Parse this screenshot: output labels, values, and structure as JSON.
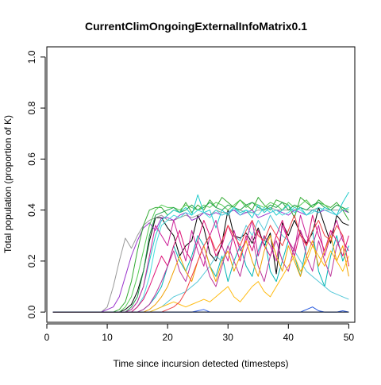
{
  "chart_data": {
    "type": "line",
    "title": "CurrentClimOngoingExternalInfoMatrix0.1",
    "xlabel": "Time since incursion detected (timesteps)",
    "ylabel": "Total population (proportion of K)",
    "xlim": [
      0,
      51
    ],
    "ylim": [
      -0.04,
      1.04
    ],
    "xticks": [
      0,
      10,
      20,
      30,
      40,
      50
    ],
    "yticks": [
      0.0,
      0.2,
      0.4,
      0.6,
      0.8,
      1.0
    ],
    "ytick_labels": [
      "0.0",
      "0.2",
      "0.4",
      "0.6",
      "0.8",
      "1.0"
    ],
    "grid": false,
    "legend": "none",
    "series": [
      {
        "color": "#000000",
        "values": [
          0,
          0,
          0,
          0,
          0,
          0,
          0,
          0,
          0,
          0,
          0,
          0,
          0.01,
          0.03,
          0.08,
          0.16,
          0.28,
          0.37,
          0.37,
          0.33,
          0.3,
          0.22,
          0.26,
          0.28,
          0.38,
          0.33,
          0.23,
          0.2,
          0.27,
          0.4,
          0.3,
          0.29,
          0.31,
          0.27,
          0.33,
          0.26,
          0.31,
          0.15,
          0.35,
          0.3,
          0.36,
          0.31,
          0.27,
          0.31,
          0.41,
          0.34,
          0.27,
          0.38,
          0.35,
          0.34
        ]
      },
      {
        "color": "#999999",
        "values": [
          0,
          0,
          0,
          0,
          0,
          0,
          0,
          0,
          0,
          0.02,
          0.1,
          0.2,
          0.29,
          0.25,
          0.3,
          0.34,
          0.36,
          0.37,
          0.38,
          0.36,
          0.36,
          0.37,
          0.38,
          0.37,
          0.38,
          0.39,
          0.38,
          0.4,
          0.39,
          0.39,
          0.4,
          0.4,
          0.39,
          0.39,
          0.4,
          0.4,
          0.41,
          0.4,
          0.4,
          0.4,
          0.4,
          0.41,
          0.4,
          0.4,
          0.41,
          0.4,
          0.4,
          0.4,
          0.4,
          0.41
        ]
      },
      {
        "color": "#9933CC",
        "values": [
          0,
          0,
          0,
          0,
          0,
          0,
          0,
          0,
          0,
          0.01,
          0.02,
          0.06,
          0.14,
          0.22,
          0.28,
          0.33,
          0.35,
          0.32,
          0.37,
          0.37,
          0.36,
          0.38,
          0.39,
          0.36,
          0.37,
          0.39,
          0.38,
          0.39,
          0.38,
          0.39,
          0.4,
          0.38,
          0.39,
          0.4,
          0.37,
          0.38,
          0.39,
          0.4,
          0.39,
          0.38,
          0.4,
          0.39,
          0.38,
          0.4,
          0.39,
          0.4,
          0.39,
          0.38,
          0.4,
          0.39
        ]
      },
      {
        "color": "#33AA33",
        "values": [
          0,
          0,
          0,
          0,
          0,
          0,
          0,
          0,
          0,
          0,
          0,
          0.01,
          0.04,
          0.12,
          0.24,
          0.34,
          0.4,
          0.41,
          0.41,
          0.38,
          0.4,
          0.39,
          0.43,
          0.39,
          0.42,
          0.4,
          0.44,
          0.41,
          0.45,
          0.43,
          0.41,
          0.44,
          0.42,
          0.4,
          0.45,
          0.42,
          0.4,
          0.44,
          0.43,
          0.42,
          0.37,
          0.45,
          0.43,
          0.41,
          0.44,
          0.42,
          0.41,
          0.43,
          0.4,
          0.36
        ]
      },
      {
        "color": "#55CC55",
        "values": [
          0,
          0,
          0,
          0,
          0,
          0,
          0,
          0,
          0,
          0,
          0,
          0,
          0.02,
          0.06,
          0.14,
          0.24,
          0.34,
          0.4,
          0.42,
          0.41,
          0.41,
          0.4,
          0.42,
          0.41,
          0.4,
          0.42,
          0.41,
          0.43,
          0.42,
          0.4,
          0.42,
          0.44,
          0.41,
          0.43,
          0.42,
          0.41,
          0.43,
          0.42,
          0.4,
          0.43,
          0.41,
          0.42,
          0.44,
          0.41,
          0.43,
          0.42,
          0.4,
          0.42,
          0.41,
          0.4
        ]
      },
      {
        "color": "#1E9E4A",
        "values": [
          0,
          0,
          0,
          0,
          0,
          0,
          0,
          0,
          0,
          0,
          0,
          0,
          0,
          0.02,
          0.06,
          0.16,
          0.3,
          0.38,
          0.39,
          0.4,
          0.41,
          0.39,
          0.4,
          0.42,
          0.4,
          0.41,
          0.43,
          0.41,
          0.4,
          0.42,
          0.41,
          0.4,
          0.42,
          0.43,
          0.41,
          0.4,
          0.42,
          0.41,
          0.43,
          0.4,
          0.42,
          0.41,
          0.4,
          0.42,
          0.43,
          0.41,
          0.4,
          0.42,
          0.41,
          0.39
        ]
      },
      {
        "color": "#22CCCC",
        "values": [
          0,
          0,
          0,
          0,
          0,
          0,
          0,
          0,
          0,
          0,
          0,
          0,
          0,
          0.01,
          0.04,
          0.1,
          0.2,
          0.3,
          0.36,
          0.38,
          0.4,
          0.39,
          0.41,
          0.38,
          0.46,
          0.39,
          0.4,
          0.33,
          0.4,
          0.38,
          0.41,
          0.39,
          0.4,
          0.37,
          0.42,
          0.39,
          0.41,
          0.38,
          0.4,
          0.42,
          0.39,
          0.41,
          0.38,
          0.4,
          0.39,
          0.41,
          0.4,
          0.38,
          0.43,
          0.47
        ]
      },
      {
        "color": "#44DDDD",
        "values": [
          0,
          0,
          0,
          0,
          0,
          0,
          0,
          0,
          0,
          0,
          0,
          0,
          0,
          0,
          0.02,
          0.06,
          0.14,
          0.26,
          0.34,
          0.36,
          0.38,
          0.37,
          0.39,
          0.38,
          0.4,
          0.39,
          0.37,
          0.4,
          0.38,
          0.39,
          0.41,
          0.38,
          0.4,
          0.39,
          0.38,
          0.41,
          0.39,
          0.4,
          0.38,
          0.39,
          0.41,
          0.4,
          0.38,
          0.39,
          0.41,
          0.4,
          0.39,
          0.38,
          0.4,
          0.41
        ]
      },
      {
        "color": "#00B5B5",
        "values": [
          0,
          0,
          0,
          0,
          0,
          0,
          0,
          0,
          0,
          0,
          0,
          0,
          0,
          0,
          0,
          0.01,
          0.03,
          0.06,
          0.1,
          0.18,
          0.26,
          0.2,
          0.16,
          0.22,
          0.3,
          0.26,
          0.18,
          0.14,
          0.22,
          0.12,
          0.2,
          0.26,
          0.18,
          0.14,
          0.24,
          0.3,
          0.16,
          0.12,
          0.2,
          0.28,
          0.22,
          0.14,
          0.26,
          0.32,
          0.16,
          0.1,
          0.22,
          0.3,
          0.2,
          0.26
        ]
      },
      {
        "color": "#55C8D8",
        "values": [
          0,
          0,
          0,
          0,
          0,
          0,
          0,
          0,
          0,
          0,
          0,
          0,
          0,
          0,
          0,
          0,
          0,
          0.01,
          0.02,
          0.04,
          0.06,
          0.07,
          0.08,
          0.1,
          0.12,
          0.15,
          0.18,
          0.22,
          0.2,
          0.26,
          0.3,
          0.28,
          0.34,
          0.3,
          0.36,
          0.32,
          0.38,
          0.34,
          0.3,
          0.28,
          0.24,
          0.2,
          0.16,
          0.14,
          0.12,
          0.1,
          0.08,
          0.07,
          0.06,
          0.05
        ]
      },
      {
        "color": "#CC2299",
        "values": [
          0,
          0,
          0,
          0,
          0,
          0,
          0,
          0,
          0,
          0,
          0,
          0,
          0,
          0.01,
          0.04,
          0.1,
          0.22,
          0.34,
          0.3,
          0.26,
          0.36,
          0.28,
          0.2,
          0.32,
          0.24,
          0.18,
          0.3,
          0.36,
          0.26,
          0.2,
          0.32,
          0.24,
          0.28,
          0.36,
          0.22,
          0.3,
          0.26,
          0.2,
          0.34,
          0.28,
          0.24,
          0.38,
          0.3,
          0.26,
          0.34,
          0.22,
          0.3,
          0.36,
          0.28,
          0.24
        ]
      },
      {
        "color": "#DD1177",
        "values": [
          0,
          0,
          0,
          0,
          0,
          0,
          0,
          0,
          0,
          0,
          0,
          0,
          0,
          0,
          0.02,
          0.05,
          0.1,
          0.16,
          0.22,
          0.18,
          0.26,
          0.32,
          0.24,
          0.2,
          0.28,
          0.36,
          0.3,
          0.22,
          0.26,
          0.34,
          0.28,
          0.2,
          0.3,
          0.24,
          0.32,
          0.26,
          0.22,
          0.3,
          0.36,
          0.28,
          0.22,
          0.32,
          0.26,
          0.38,
          0.3,
          0.24,
          0.32,
          0.28,
          0.22,
          0.3
        ]
      },
      {
        "color": "#BB3399",
        "values": [
          0,
          0,
          0,
          0,
          0,
          0,
          0,
          0,
          0,
          0,
          0,
          0,
          0,
          0,
          0,
          0.01,
          0.03,
          0.07,
          0.12,
          0.18,
          0.24,
          0.16,
          0.12,
          0.2,
          0.28,
          0.22,
          0.14,
          0.1,
          0.18,
          0.26,
          0.2,
          0.14,
          0.24,
          0.3,
          0.18,
          0.12,
          0.22,
          0.28,
          0.2,
          0.16,
          0.26,
          0.32,
          0.22,
          0.16,
          0.28,
          0.2,
          0.14,
          0.26,
          0.3,
          0.18
        ]
      },
      {
        "color": "#F0A000",
        "values": [
          0,
          0,
          0,
          0,
          0,
          0,
          0,
          0,
          0,
          0,
          0,
          0,
          0,
          0,
          0,
          0,
          0.01,
          0.03,
          0.06,
          0.1,
          0.16,
          0.22,
          0.16,
          0.12,
          0.2,
          0.26,
          0.18,
          0.12,
          0.2,
          0.24,
          0.16,
          0.22,
          0.28,
          0.2,
          0.14,
          0.24,
          0.3,
          0.22,
          0.16,
          0.26,
          0.2,
          0.14,
          0.22,
          0.28,
          0.18,
          0.24,
          0.3,
          0.2,
          0.26,
          0.14
        ]
      },
      {
        "color": "#FFBB11",
        "values": [
          0,
          0,
          0,
          0,
          0,
          0,
          0,
          0,
          0,
          0,
          0,
          0,
          0,
          0,
          0,
          0,
          0,
          0.01,
          0.02,
          0.03,
          0.04,
          0.03,
          0.02,
          0.03,
          0.04,
          0.05,
          0.04,
          0.06,
          0.08,
          0.1,
          0.06,
          0.04,
          0.07,
          0.1,
          0.12,
          0.08,
          0.06,
          0.1,
          0.14,
          0.18,
          0.22,
          0.16,
          0.2,
          0.26,
          0.22,
          0.18,
          0.24,
          0.2,
          0.16,
          0.22
        ]
      },
      {
        "color": "#EE4444",
        "values": [
          0,
          0,
          0,
          0,
          0,
          0,
          0,
          0,
          0,
          0,
          0,
          0,
          0,
          0,
          0,
          0,
          0,
          0,
          0,
          0.01,
          0.02,
          0.04,
          0.08,
          0.14,
          0.2,
          0.26,
          0.3,
          0.24,
          0.28,
          0.34,
          0.3,
          0.26,
          0.32,
          0.36,
          0.3,
          0.28,
          0.34,
          0.3,
          0.26,
          0.32,
          0.38,
          0.3,
          0.26,
          0.32,
          0.36,
          0.3,
          0.28,
          0.34,
          0.3,
          0.18
        ]
      },
      {
        "color": "#2255DD",
        "values": [
          0,
          0,
          0,
          0,
          0,
          0,
          0,
          0,
          0,
          0,
          0,
          0,
          0,
          0,
          0,
          0,
          0,
          0,
          0,
          0,
          0,
          0,
          0,
          0,
          0,
          0,
          0,
          0,
          0,
          0,
          0,
          0,
          0,
          0,
          0,
          0,
          0,
          0,
          0,
          0,
          0,
          0,
          0.01,
          0.02,
          0.005,
          0,
          0,
          0,
          0.005,
          0
        ]
      },
      {
        "color": "#3366EE",
        "values": [
          0,
          0,
          0,
          0,
          0,
          0,
          0,
          0,
          0,
          0,
          0,
          0,
          0,
          0,
          0,
          0,
          0,
          0,
          0,
          0,
          0,
          0,
          0,
          0,
          0.005,
          0.01,
          0,
          0,
          0,
          0,
          0,
          0,
          0,
          0,
          0,
          0,
          0,
          0,
          0,
          0,
          0,
          0,
          0,
          0,
          0,
          0,
          0,
          0,
          0,
          0
        ]
      },
      {
        "color": "#111111",
        "values": [
          0,
          0,
          0,
          0,
          0,
          0,
          0,
          0,
          0,
          0,
          0,
          0,
          0,
          0,
          0,
          0,
          0,
          0,
          0,
          0,
          0,
          0,
          0,
          0,
          0,
          0,
          0,
          0,
          0,
          0,
          0,
          0,
          0,
          0,
          0,
          0,
          0,
          0,
          0,
          0,
          0,
          0,
          0,
          0,
          0,
          0,
          0,
          0,
          0,
          0
        ]
      }
    ]
  }
}
